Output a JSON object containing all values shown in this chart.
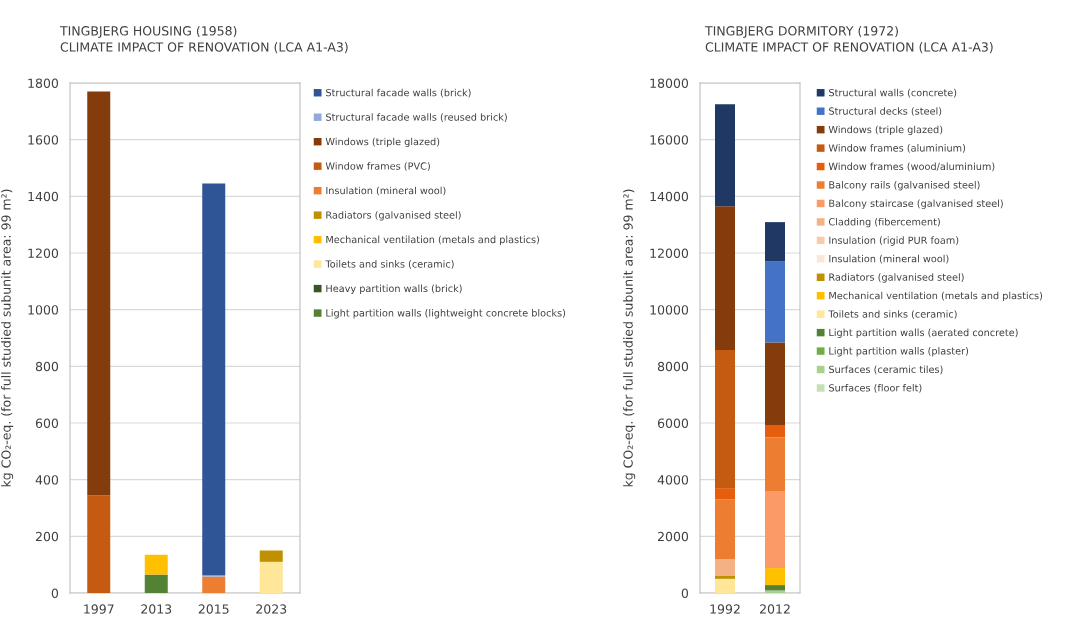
{
  "chart_data": [
    {
      "type": "bar",
      "stacked": true,
      "title": "TINGBJERG HOUSING (1958)",
      "subtitle": "CLIMATE IMPACT OF RENOVATION (LCA A1-A3)",
      "ylabel": "kg CO₂-eq. (for full studied subunit area: 99 m²)",
      "categories": [
        "1997",
        "2013",
        "2015",
        "2023"
      ],
      "ylim": [
        0,
        1800
      ],
      "yticks": [
        0,
        200,
        400,
        600,
        800,
        1000,
        1200,
        1400,
        1600,
        1800
      ],
      "grid": "y",
      "legend": "right",
      "series": [
        {
          "name": "Light partition walls (lightweight concrete blocks)",
          "color": "#548235",
          "values": [
            0,
            65,
            0,
            0
          ]
        },
        {
          "name": "Heavy partition walls (brick)",
          "color": "#375623",
          "values": [
            0,
            0,
            0,
            0
          ]
        },
        {
          "name": "Toilets and sinks (ceramic)",
          "color": "#FFE699",
          "values": [
            0,
            0,
            0,
            110
          ]
        },
        {
          "name": "Mechanical ventilation (metals and plastics)",
          "color": "#FFC000",
          "values": [
            0,
            70,
            0,
            0
          ]
        },
        {
          "name": "Radiators (galvanised steel)",
          "color": "#BF9000",
          "values": [
            0,
            0,
            0,
            40
          ]
        },
        {
          "name": "Insulation (mineral wool)",
          "color": "#ED7D31",
          "values": [
            0,
            0,
            58,
            0
          ]
        },
        {
          "name": "Window frames (PVC)",
          "color": "#C55A11",
          "values": [
            345,
            0,
            0,
            0
          ]
        },
        {
          "name": "Windows (triple glazed)",
          "color": "#843C0C",
          "values": [
            1425,
            0,
            0,
            0
          ]
        },
        {
          "name": "Structural facade walls (reused brick)",
          "color": "#8FAADC",
          "values": [
            0,
            0,
            5,
            0
          ]
        },
        {
          "name": "Structural facade walls (brick)",
          "color": "#2F5597",
          "values": [
            0,
            0,
            1382,
            0
          ]
        }
      ]
    },
    {
      "type": "bar",
      "stacked": true,
      "title": "TINGBJERG DORMITORY (1972)",
      "subtitle": "CLIMATE IMPACT OF RENOVATION (LCA A1-A3)",
      "ylabel": "kg CO₂-eq. (for full studied subunit area: 99 m²)",
      "categories": [
        "1992",
        "2012"
      ],
      "ylim": [
        0,
        18000
      ],
      "yticks": [
        0,
        2000,
        4000,
        6000,
        8000,
        10000,
        12000,
        14000,
        16000,
        18000
      ],
      "grid": "y",
      "legend": "right",
      "series": [
        {
          "name": "Surfaces (floor felt)",
          "color": "#C5E0B4",
          "values": [
            0,
            0
          ]
        },
        {
          "name": "Surfaces (ceramic tiles)",
          "color": "#A9D18E",
          "values": [
            0,
            90
          ]
        },
        {
          "name": "Light partition walls (plaster)",
          "color": "#70AD47",
          "values": [
            0,
            0
          ]
        },
        {
          "name": "Light partition walls (aerated concrete)",
          "color": "#548235",
          "values": [
            0,
            190
          ]
        },
        {
          "name": "Toilets and sinks (ceramic)",
          "color": "#FFE699",
          "values": [
            500,
            0
          ]
        },
        {
          "name": "Mechanical ventilation (metals and plastics)",
          "color": "#FFC000",
          "values": [
            0,
            600
          ]
        },
        {
          "name": "Radiators (galvanised steel)",
          "color": "#BF9000",
          "values": [
            100,
            0
          ]
        },
        {
          "name": "Insulation (mineral wool)",
          "color": "#FBE5D6",
          "values": [
            0,
            0
          ]
        },
        {
          "name": "Insulation (rigid PUR foam)",
          "color": "#F8CBAD",
          "values": [
            0,
            0
          ]
        },
        {
          "name": "Cladding (fibercement)",
          "color": "#F4B183",
          "values": [
            600,
            0
          ]
        },
        {
          "name": "Balcony staircase (galvanised steel)",
          "color": "#FB9A67",
          "values": [
            0,
            2720
          ]
        },
        {
          "name": "Balcony rails (galvanised steel)",
          "color": "#ED7D31",
          "values": [
            2100,
            1890
          ]
        },
        {
          "name": "Window frames (wood/aluminium)",
          "color": "#E65E0C",
          "values": [
            400,
            440
          ]
        },
        {
          "name": "Window frames (aluminium)",
          "color": "#C55A11",
          "values": [
            4880,
            0
          ]
        },
        {
          "name": "Windows (triple glazed)",
          "color": "#843C0C",
          "values": [
            5070,
            2910
          ]
        },
        {
          "name": "Structural decks (steel)",
          "color": "#4472C4",
          "values": [
            0,
            2860
          ]
        },
        {
          "name": "Structural walls (concrete)",
          "color": "#203864",
          "values": [
            3600,
            1390
          ]
        }
      ]
    }
  ]
}
